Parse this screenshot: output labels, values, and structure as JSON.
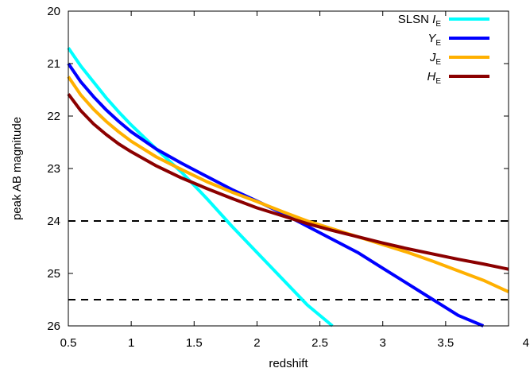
{
  "chart_data": {
    "type": "line",
    "xlabel": "redshift",
    "ylabel": "peak AB magnitude",
    "xlim": [
      0.5,
      4
    ],
    "ylim": [
      26,
      20
    ],
    "y_inverted": true,
    "grid": false,
    "legend_placement": "top-right",
    "x_ticks": [
      "0.5",
      "1",
      "1.5",
      "2",
      "2.5",
      "3",
      "3.5",
      "4"
    ],
    "y_ticks": [
      "20",
      "21",
      "22",
      "23",
      "24",
      "25",
      "26"
    ],
    "series": [
      {
        "legend_prefix": "SLSN ",
        "legend_main": "I",
        "legend_sub": "E",
        "color": "#00ffff",
        "x": [
          0.5,
          0.6,
          0.7,
          0.8,
          0.9,
          1.0,
          1.2,
          1.4,
          1.6,
          1.8,
          2.0,
          2.2,
          2.4,
          2.6
        ],
        "y": [
          20.7,
          21.05,
          21.35,
          21.65,
          21.92,
          22.17,
          22.63,
          23.07,
          23.57,
          24.1,
          24.6,
          25.1,
          25.6,
          26.05
        ]
      },
      {
        "legend_prefix": "",
        "legend_main": "Y",
        "legend_sub": "E",
        "color": "#0000ff",
        "x": [
          0.5,
          0.6,
          0.7,
          0.8,
          0.9,
          1.0,
          1.2,
          1.4,
          1.6,
          1.8,
          2.0,
          2.2,
          2.4,
          2.6,
          2.8,
          3.0,
          3.2,
          3.4,
          3.6,
          3.8
        ],
        "y": [
          21.0,
          21.35,
          21.63,
          21.88,
          22.1,
          22.3,
          22.63,
          22.9,
          23.15,
          23.4,
          23.62,
          23.85,
          24.1,
          24.35,
          24.6,
          24.9,
          25.2,
          25.5,
          25.8,
          26.05
        ]
      },
      {
        "legend_prefix": "",
        "legend_main": "J",
        "legend_sub": "E",
        "color": "#ffb000",
        "x": [
          0.5,
          0.6,
          0.7,
          0.8,
          0.9,
          1.0,
          1.2,
          1.4,
          1.6,
          1.8,
          2.0,
          2.2,
          2.4,
          2.6,
          2.8,
          3.0,
          3.2,
          3.4,
          3.6,
          3.8,
          4.0
        ],
        "y": [
          21.25,
          21.6,
          21.87,
          22.1,
          22.3,
          22.48,
          22.78,
          23.02,
          23.25,
          23.45,
          23.63,
          23.82,
          24.0,
          24.15,
          24.3,
          24.45,
          24.6,
          24.77,
          24.95,
          25.13,
          25.35
        ]
      },
      {
        "legend_prefix": "",
        "legend_main": "H",
        "legend_sub": "E",
        "color": "#8b0000",
        "x": [
          0.5,
          0.6,
          0.7,
          0.8,
          0.9,
          1.0,
          1.2,
          1.4,
          1.6,
          1.8,
          2.0,
          2.2,
          2.4,
          2.6,
          2.8,
          3.0,
          3.2,
          3.4,
          3.6,
          3.8,
          4.0
        ],
        "y": [
          21.58,
          21.9,
          22.15,
          22.35,
          22.53,
          22.68,
          22.95,
          23.18,
          23.38,
          23.57,
          23.75,
          23.9,
          24.05,
          24.18,
          24.3,
          24.42,
          24.53,
          24.63,
          24.73,
          24.82,
          24.92
        ]
      }
    ],
    "reference_lines": [
      {
        "y": 24.0,
        "style": "dashed",
        "color": "#000000"
      },
      {
        "y": 25.5,
        "style": "dashed",
        "color": "#000000"
      }
    ]
  }
}
